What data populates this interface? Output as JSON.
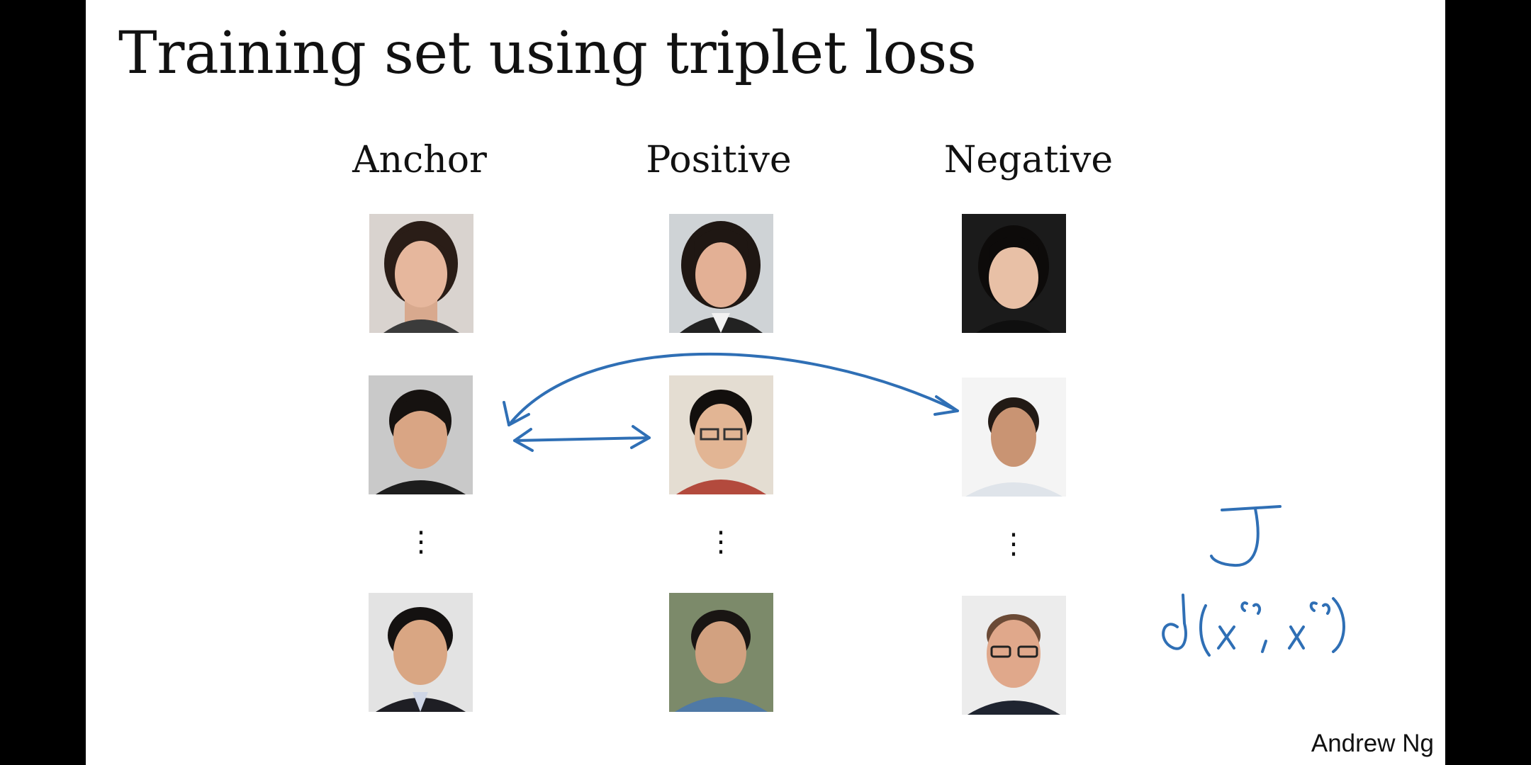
{
  "slide": {
    "title": "Training set using triplet loss",
    "columns": [
      {
        "label": "Anchor"
      },
      {
        "label": "Positive"
      },
      {
        "label": "Negative"
      }
    ],
    "row_separator": "⋮",
    "author": "Andrew Ng"
  },
  "colors": {
    "letterbox": "#000000",
    "slide_background": "#ffffff",
    "text": "#111111",
    "pen_ink": "#2f6fb5"
  }
}
